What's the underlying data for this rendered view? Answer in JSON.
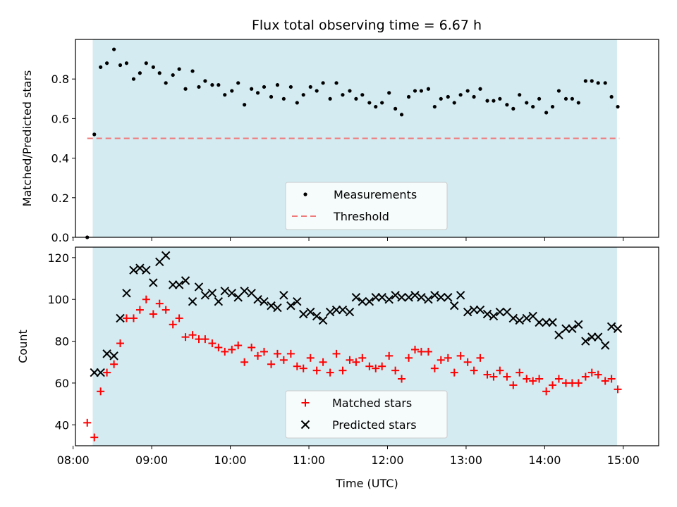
{
  "colors": {
    "observing_band": "#d3ebf1",
    "measurement": "#000000",
    "threshold": "#f07a7a",
    "matched": "#ff0000",
    "predicted": "#000000"
  },
  "chart_data": [
    {
      "type": "scatter",
      "title": "Flux total observing time = 6.67 h",
      "xlabel": "",
      "ylabel": "Matched/Predicted stars",
      "ylim": [
        0,
        1.0
      ],
      "yticks": [
        0.0,
        0.2,
        0.4,
        0.6,
        0.8
      ],
      "ytick_labels": [
        "0.0",
        "0.2",
        "0.4",
        "0.6",
        "0.8"
      ],
      "xlim": [
        8.03,
        15.45
      ],
      "observing_band": [
        8.25,
        14.92
      ],
      "threshold": {
        "y": 0.5,
        "x_range": [
          8.18,
          14.95
        ],
        "label": "Threshold"
      },
      "legend": {
        "position": "lower center",
        "entries": [
          "Measurements",
          "Threshold"
        ]
      },
      "series": [
        {
          "name": "Measurements",
          "points": [
            [
              8.18,
              0.0
            ],
            [
              8.27,
              0.52
            ],
            [
              8.35,
              0.86
            ],
            [
              8.43,
              0.88
            ],
            [
              8.52,
              0.95
            ],
            [
              8.6,
              0.87
            ],
            [
              8.68,
              0.88
            ],
            [
              8.77,
              0.8
            ],
            [
              8.85,
              0.83
            ],
            [
              8.93,
              0.88
            ],
            [
              9.02,
              0.86
            ],
            [
              9.1,
              0.83
            ],
            [
              9.18,
              0.78
            ],
            [
              9.27,
              0.82
            ],
            [
              9.35,
              0.85
            ],
            [
              9.43,
              0.75
            ],
            [
              9.52,
              0.84
            ],
            [
              9.6,
              0.76
            ],
            [
              9.68,
              0.79
            ],
            [
              9.77,
              0.77
            ],
            [
              9.85,
              0.77
            ],
            [
              9.93,
              0.72
            ],
            [
              10.02,
              0.74
            ],
            [
              10.1,
              0.78
            ],
            [
              10.18,
              0.67
            ],
            [
              10.27,
              0.75
            ],
            [
              10.35,
              0.73
            ],
            [
              10.43,
              0.76
            ],
            [
              10.52,
              0.71
            ],
            [
              10.6,
              0.77
            ],
            [
              10.68,
              0.7
            ],
            [
              10.77,
              0.76
            ],
            [
              10.85,
              0.68
            ],
            [
              10.93,
              0.72
            ],
            [
              11.02,
              0.76
            ],
            [
              11.1,
              0.74
            ],
            [
              11.18,
              0.78
            ],
            [
              11.27,
              0.7
            ],
            [
              11.35,
              0.78
            ],
            [
              11.43,
              0.72
            ],
            [
              11.52,
              0.74
            ],
            [
              11.6,
              0.7
            ],
            [
              11.68,
              0.72
            ],
            [
              11.77,
              0.68
            ],
            [
              11.85,
              0.66
            ],
            [
              11.93,
              0.68
            ],
            [
              12.02,
              0.73
            ],
            [
              12.1,
              0.65
            ],
            [
              12.18,
              0.62
            ],
            [
              12.27,
              0.71
            ],
            [
              12.35,
              0.74
            ],
            [
              12.43,
              0.74
            ],
            [
              12.52,
              0.75
            ],
            [
              12.6,
              0.66
            ],
            [
              12.68,
              0.7
            ],
            [
              12.77,
              0.71
            ],
            [
              12.85,
              0.68
            ],
            [
              12.93,
              0.72
            ],
            [
              13.02,
              0.74
            ],
            [
              13.1,
              0.71
            ],
            [
              13.18,
              0.75
            ],
            [
              13.27,
              0.69
            ],
            [
              13.35,
              0.69
            ],
            [
              13.43,
              0.7
            ],
            [
              13.52,
              0.67
            ],
            [
              13.6,
              0.65
            ],
            [
              13.68,
              0.72
            ],
            [
              13.77,
              0.68
            ],
            [
              13.85,
              0.66
            ],
            [
              13.93,
              0.7
            ],
            [
              14.02,
              0.63
            ],
            [
              14.1,
              0.66
            ],
            [
              14.18,
              0.74
            ],
            [
              14.27,
              0.7
            ],
            [
              14.35,
              0.7
            ],
            [
              14.43,
              0.68
            ],
            [
              14.52,
              0.79
            ],
            [
              14.6,
              0.79
            ],
            [
              14.68,
              0.78
            ],
            [
              14.77,
              0.78
            ],
            [
              14.85,
              0.71
            ],
            [
              14.93,
              0.66
            ]
          ]
        }
      ]
    },
    {
      "type": "scatter",
      "title": "",
      "xlabel": "Time (UTC)",
      "ylabel": "Count",
      "ylim": [
        30,
        125
      ],
      "yticks": [
        40,
        60,
        80,
        100,
        120
      ],
      "ytick_labels": [
        "40",
        "60",
        "80",
        "100",
        "120"
      ],
      "xlim": [
        8.03,
        15.45
      ],
      "xticks": [
        8,
        9,
        10,
        11,
        12,
        13,
        14,
        15
      ],
      "xtick_labels": [
        "08:00",
        "09:00",
        "10:00",
        "11:00",
        "12:00",
        "13:00",
        "14:00",
        "15:00"
      ],
      "observing_band": [
        8.25,
        14.92
      ],
      "legend": {
        "position": "lower center",
        "entries": [
          "Matched stars",
          "Predicted stars"
        ]
      },
      "series": [
        {
          "name": "Matched stars",
          "marker": "plus",
          "points": [
            [
              8.18,
              41
            ],
            [
              8.27,
              34
            ],
            [
              8.35,
              56
            ],
            [
              8.43,
              65
            ],
            [
              8.52,
              69
            ],
            [
              8.6,
              79
            ],
            [
              8.68,
              91
            ],
            [
              8.77,
              91
            ],
            [
              8.85,
              95
            ],
            [
              8.93,
              100
            ],
            [
              9.02,
              93
            ],
            [
              9.1,
              98
            ],
            [
              9.18,
              95
            ],
            [
              9.27,
              88
            ],
            [
              9.35,
              91
            ],
            [
              9.43,
              82
            ],
            [
              9.52,
              83
            ],
            [
              9.6,
              81
            ],
            [
              9.68,
              81
            ],
            [
              9.77,
              79
            ],
            [
              9.85,
              77
            ],
            [
              9.93,
              75
            ],
            [
              10.02,
              76
            ],
            [
              10.1,
              78
            ],
            [
              10.18,
              70
            ],
            [
              10.27,
              77
            ],
            [
              10.35,
              73
            ],
            [
              10.43,
              75
            ],
            [
              10.52,
              69
            ],
            [
              10.6,
              74
            ],
            [
              10.68,
              71
            ],
            [
              10.77,
              74
            ],
            [
              10.85,
              68
            ],
            [
              10.93,
              67
            ],
            [
              11.02,
              72
            ],
            [
              11.1,
              66
            ],
            [
              11.18,
              70
            ],
            [
              11.27,
              65
            ],
            [
              11.35,
              74
            ],
            [
              11.43,
              66
            ],
            [
              11.52,
              71
            ],
            [
              11.6,
              70
            ],
            [
              11.68,
              72
            ],
            [
              11.77,
              68
            ],
            [
              11.85,
              67
            ],
            [
              11.93,
              68
            ],
            [
              12.02,
              73
            ],
            [
              12.1,
              66
            ],
            [
              12.18,
              62
            ],
            [
              12.27,
              72
            ],
            [
              12.35,
              76
            ],
            [
              12.43,
              75
            ],
            [
              12.52,
              75
            ],
            [
              12.6,
              67
            ],
            [
              12.68,
              71
            ],
            [
              12.77,
              72
            ],
            [
              12.85,
              65
            ],
            [
              12.93,
              73
            ],
            [
              13.02,
              70
            ],
            [
              13.1,
              66
            ],
            [
              13.18,
              72
            ],
            [
              13.27,
              64
            ],
            [
              13.35,
              63
            ],
            [
              13.43,
              66
            ],
            [
              13.52,
              63
            ],
            [
              13.6,
              59
            ],
            [
              13.68,
              65
            ],
            [
              13.77,
              62
            ],
            [
              13.85,
              61
            ],
            [
              13.93,
              62
            ],
            [
              14.02,
              56
            ],
            [
              14.1,
              59
            ],
            [
              14.18,
              62
            ],
            [
              14.27,
              60
            ],
            [
              14.35,
              60
            ],
            [
              14.43,
              60
            ],
            [
              14.52,
              63
            ],
            [
              14.6,
              65
            ],
            [
              14.68,
              64
            ],
            [
              14.77,
              61
            ],
            [
              14.85,
              62
            ],
            [
              14.93,
              57
            ]
          ]
        },
        {
          "name": "Predicted stars",
          "marker": "x",
          "points": [
            [
              8.27,
              65
            ],
            [
              8.35,
              65
            ],
            [
              8.43,
              74
            ],
            [
              8.52,
              73
            ],
            [
              8.6,
              91
            ],
            [
              8.68,
              103
            ],
            [
              8.77,
              114
            ],
            [
              8.85,
              115
            ],
            [
              8.93,
              114
            ],
            [
              9.02,
              108
            ],
            [
              9.1,
              118
            ],
            [
              9.18,
              121
            ],
            [
              9.27,
              107
            ],
            [
              9.35,
              107
            ],
            [
              9.43,
              109
            ],
            [
              9.52,
              99
            ],
            [
              9.6,
              106
            ],
            [
              9.68,
              102
            ],
            [
              9.77,
              103
            ],
            [
              9.85,
              99
            ],
            [
              9.93,
              104
            ],
            [
              10.02,
              103
            ],
            [
              10.1,
              101
            ],
            [
              10.18,
              104
            ],
            [
              10.27,
              103
            ],
            [
              10.35,
              100
            ],
            [
              10.43,
              99
            ],
            [
              10.52,
              97
            ],
            [
              10.6,
              96
            ],
            [
              10.68,
              102
            ],
            [
              10.77,
              97
            ],
            [
              10.85,
              99
            ],
            [
              10.93,
              93
            ],
            [
              11.02,
              94
            ],
            [
              11.1,
              92
            ],
            [
              11.18,
              90
            ],
            [
              11.27,
              94
            ],
            [
              11.35,
              95
            ],
            [
              11.43,
              95
            ],
            [
              11.52,
              94
            ],
            [
              11.6,
              101
            ],
            [
              11.68,
              99
            ],
            [
              11.77,
              99
            ],
            [
              11.85,
              101
            ],
            [
              11.93,
              101
            ],
            [
              12.02,
              100
            ],
            [
              12.1,
              102
            ],
            [
              12.18,
              101
            ],
            [
              12.27,
              101
            ],
            [
              12.35,
              102
            ],
            [
              12.43,
              101
            ],
            [
              12.52,
              100
            ],
            [
              12.6,
              102
            ],
            [
              12.68,
              101
            ],
            [
              12.77,
              101
            ],
            [
              12.85,
              97
            ],
            [
              12.93,
              102
            ],
            [
              13.02,
              94
            ],
            [
              13.1,
              95
            ],
            [
              13.18,
              95
            ],
            [
              13.27,
              93
            ],
            [
              13.35,
              92
            ],
            [
              13.43,
              94
            ],
            [
              13.52,
              94
            ],
            [
              13.6,
              91
            ],
            [
              13.68,
              90
            ],
            [
              13.77,
              91
            ],
            [
              13.85,
              92
            ],
            [
              13.93,
              89
            ],
            [
              14.02,
              89
            ],
            [
              14.1,
              89
            ],
            [
              14.18,
              83
            ],
            [
              14.27,
              86
            ],
            [
              14.35,
              86
            ],
            [
              14.43,
              88
            ],
            [
              14.52,
              80
            ],
            [
              14.6,
              82
            ],
            [
              14.68,
              82
            ],
            [
              14.77,
              78
            ],
            [
              14.85,
              87
            ],
            [
              14.93,
              86
            ]
          ]
        }
      ]
    }
  ]
}
